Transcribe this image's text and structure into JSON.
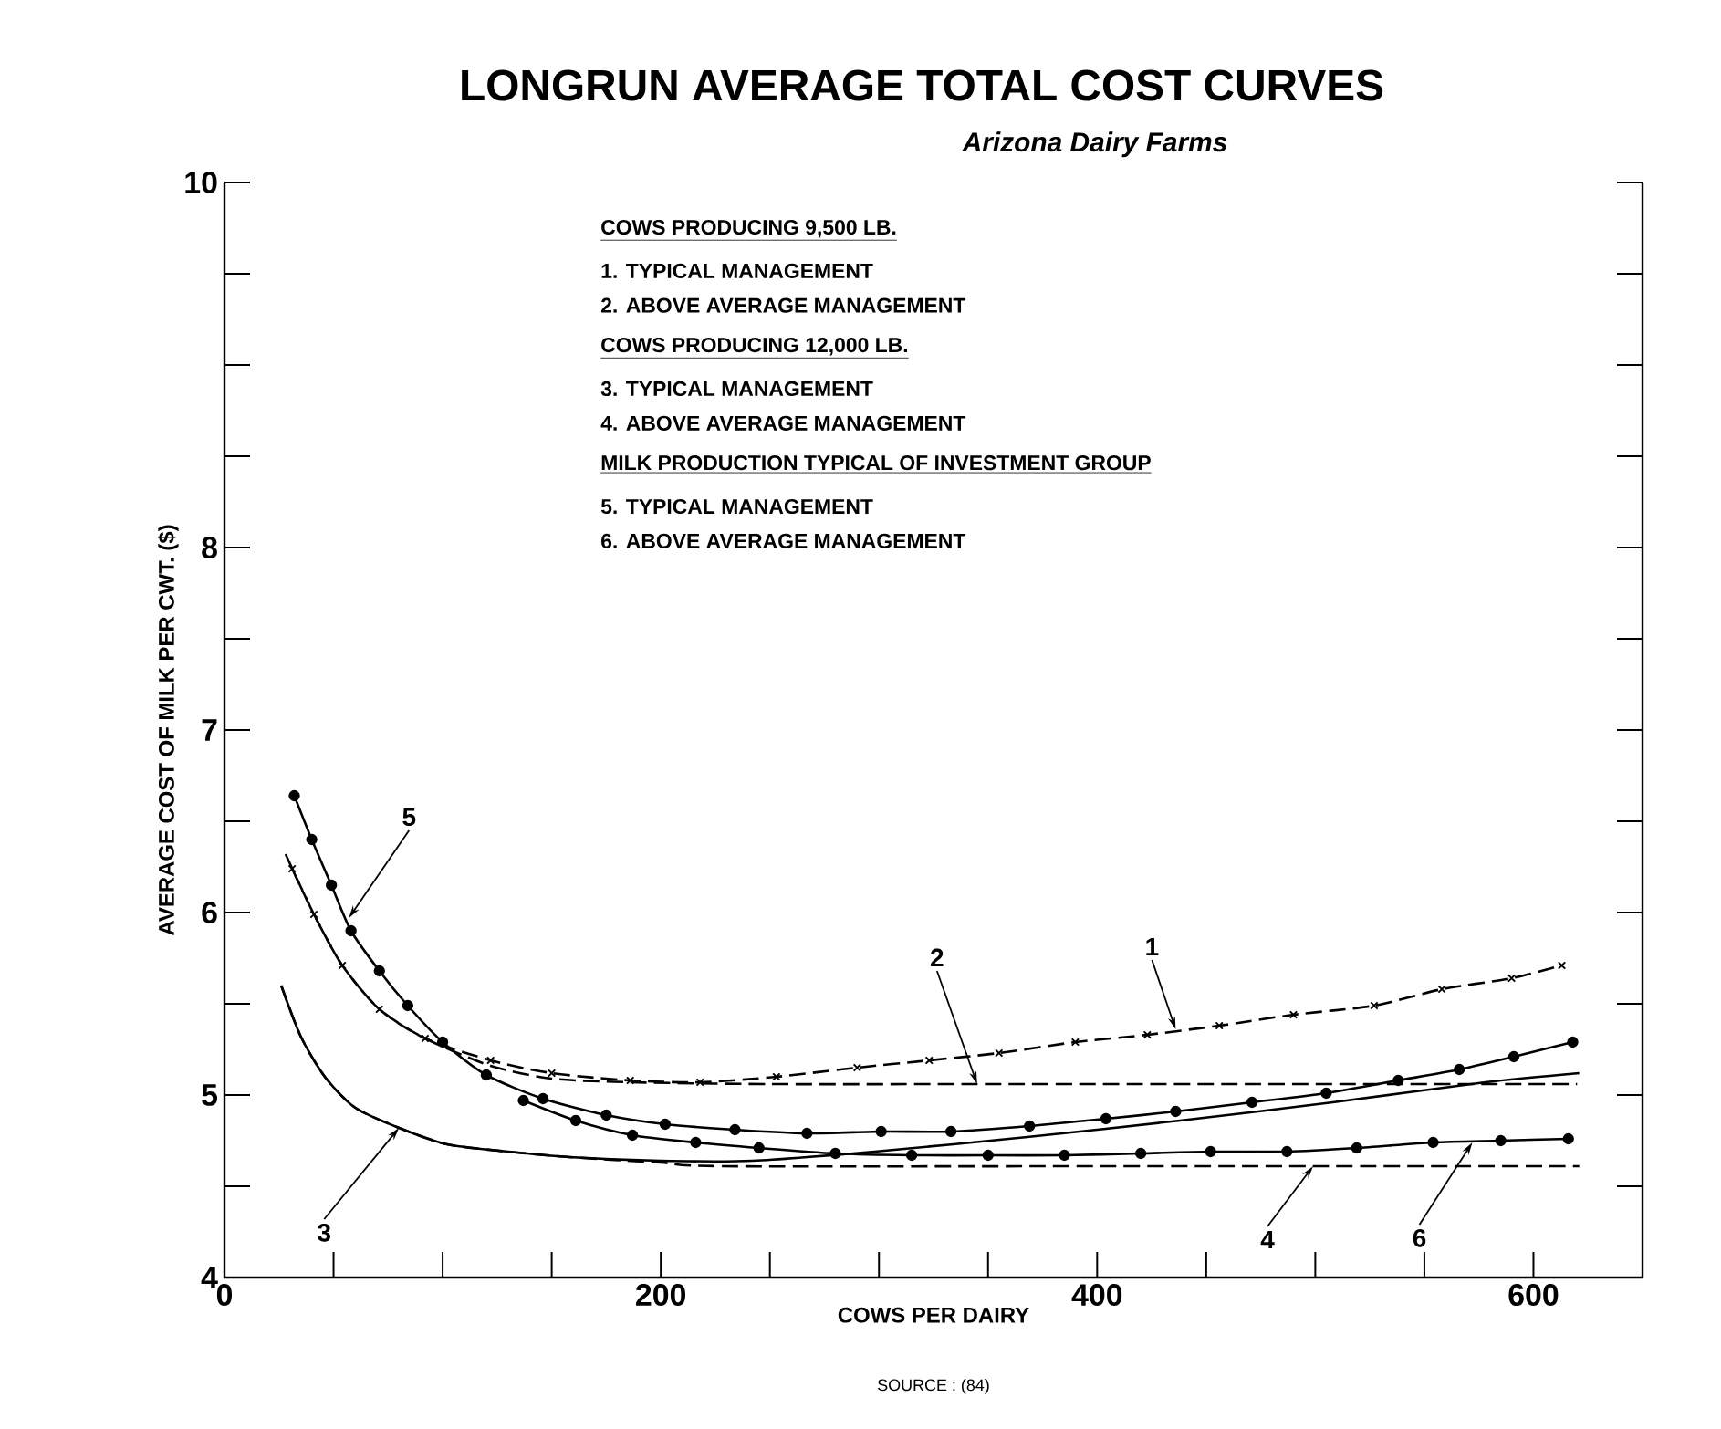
{
  "chart_data": {
    "type": "line",
    "title": "LONGRUN AVERAGE TOTAL COST CURVES",
    "subtitle": "Arizona Dairy Farms",
    "xlabel": "COWS PER DAIRY",
    "ylabel": "AVERAGE COST OF MILK PER CWT. ($)",
    "xlim": [
      0,
      650
    ],
    "ylim": [
      4,
      10
    ],
    "xticks": [
      0,
      {
        "value": 50,
        "label": null
      },
      {
        "value": 100,
        "label": null
      },
      {
        "value": 150,
        "label": null
      },
      200,
      {
        "value": 250,
        "label": null
      },
      {
        "value": 300,
        "label": null
      },
      {
        "value": 350,
        "label": null
      },
      400,
      {
        "value": 450,
        "label": null
      },
      {
        "value": 500,
        "label": null
      },
      {
        "value": 550,
        "label": null
      },
      600
    ],
    "yticks": [
      4,
      {
        "value": 4.5,
        "label": null
      },
      5,
      {
        "value": 5.5,
        "label": null
      },
      6,
      {
        "value": 6.5,
        "label": null
      },
      7,
      {
        "value": 7.5,
        "label": null
      },
      8,
      {
        "value": 8.5,
        "label": null
      },
      {
        "value": 9,
        "label": null
      },
      {
        "value": 9.5,
        "label": null
      },
      10
    ],
    "series": [
      {
        "color": "#000000",
        "marker": "cross",
        "line_style": "dashed",
        "x": [
          31,
          41,
          54,
          71,
          92,
          122,
          150,
          186,
          218,
          253,
          290,
          323,
          355,
          390,
          423,
          456,
          490,
          527,
          558,
          590,
          613
        ],
        "values": [
          6.24,
          5.99,
          5.71,
          5.47,
          5.31,
          5.19,
          5.12,
          5.08,
          5.07,
          5.1,
          5.15,
          5.19,
          5.23,
          5.29,
          5.33,
          5.38,
          5.44,
          5.49,
          5.58,
          5.64,
          5.71
        ]
      },
      {
        "color": "#000000",
        "marker": "none",
        "line_style": "dashed",
        "x": [
          28,
          41,
          54,
          71,
          92,
          122,
          150,
          186,
          250,
          345,
          400,
          620
        ],
        "values": [
          6.32,
          5.99,
          5.71,
          5.47,
          5.31,
          5.16,
          5.09,
          5.07,
          5.06,
          5.06,
          5.06,
          5.06
        ]
      },
      {
        "color": "#000000",
        "marker": "none",
        "line_style": "solid",
        "x": [
          26,
          35,
          46,
          60,
          80,
          102,
          130,
          158,
          200,
          242,
          298,
          368,
          438,
          508,
          578,
          621
        ],
        "values": [
          5.6,
          5.32,
          5.1,
          4.93,
          4.82,
          4.73,
          4.69,
          4.66,
          4.64,
          4.64,
          4.69,
          4.77,
          4.86,
          4.96,
          5.07,
          5.12
        ]
      },
      {
        "color": "#000000",
        "marker": "none",
        "line_style": "dashed",
        "x": [
          26,
          35,
          46,
          60,
          80,
          102,
          130,
          158,
          200,
          228,
          400,
          499,
          621
        ],
        "values": [
          5.6,
          5.32,
          5.1,
          4.93,
          4.82,
          4.73,
          4.69,
          4.66,
          4.63,
          4.61,
          4.61,
          4.61,
          4.61
        ]
      },
      {
        "color": "#000000",
        "marker": "circle",
        "line_style": "solid",
        "x": [
          32,
          40,
          49,
          58,
          71,
          84,
          100,
          120,
          146,
          175,
          202,
          234,
          267,
          301,
          333,
          369,
          404,
          436,
          471,
          505,
          538,
          566,
          591,
          618
        ],
        "values": [
          6.64,
          6.4,
          6.15,
          5.9,
          5.68,
          5.49,
          5.29,
          5.11,
          4.98,
          4.89,
          4.84,
          4.81,
          4.79,
          4.8,
          4.8,
          4.83,
          4.87,
          4.91,
          4.96,
          5.01,
          5.08,
          5.14,
          5.21,
          5.29
        ]
      },
      {
        "color": "#000000",
        "marker": "circle",
        "line_style": "solid",
        "x": [
          137,
          161,
          187,
          216,
          245,
          280,
          315,
          350,
          385,
          420,
          452,
          487,
          519,
          554,
          585,
          616
        ],
        "values": [
          4.97,
          4.86,
          4.78,
          4.74,
          4.71,
          4.68,
          4.67,
          4.67,
          4.67,
          4.68,
          4.69,
          4.69,
          4.71,
          4.74,
          4.75,
          4.76
        ]
      }
    ],
    "annotations": [
      "COWS PRODUCING 9,500 LB.",
      "1. TYPICAL MANAGEMENT",
      "2. ABOVE AVERAGE MANAGEMENT",
      "COWS PRODUCING 12,000 LB.",
      "3. TYPICAL MANAGEMENT",
      "4. ABOVE AVERAGE MANAGEMENT",
      "MILK PRODUCTION TYPICAL OF INVESTMENT GROUP",
      "5. TYPICAL MANAGEMENT",
      "6. ABOVE AVERAGE MANAGEMENT",
      "SOURCE : (84)",
      {
        "text": "1",
        "x": 436,
        "y": 5.36
      },
      {
        "text": "2",
        "x": 345,
        "y": 5.06
      },
      {
        "text": "3",
        "x": 80,
        "y": 4.82
      },
      {
        "text": "4",
        "x": 499,
        "y": 4.61
      },
      {
        "text": "5",
        "x": 57,
        "y": 5.97
      },
      {
        "text": "6",
        "x": 572,
        "y": 4.74
      }
    ]
  }
}
